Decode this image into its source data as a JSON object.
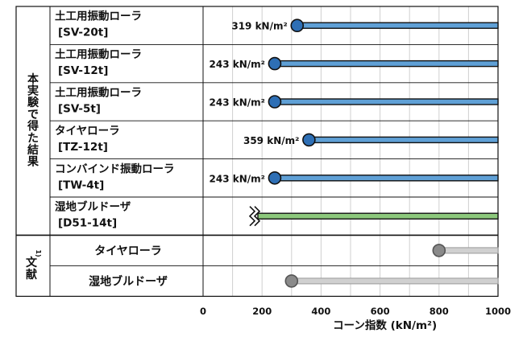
{
  "chart_data": {
    "type": "bar",
    "title": "",
    "xlabel": "コーン指数 (kN/m²)",
    "xlim": [
      0,
      1000
    ],
    "xticks": [
      "0",
      "200",
      "400",
      "600",
      "800",
      "1000"
    ],
    "grid": true,
    "groups": [
      {
        "label": "本実験で得た結果",
        "rows": [
          0,
          1,
          2,
          3,
          4,
          5
        ]
      },
      {
        "label": "文献",
        "superscript": "1)",
        "rows": [
          6,
          7
        ]
      }
    ],
    "rows": [
      {
        "name": "土工用振動ローラ",
        "spec": "[SV-20t]",
        "value": 319,
        "value_label": "319 kN/m²",
        "color": "#5fa0d6",
        "marker": true
      },
      {
        "name": "土工用振動ローラ",
        "spec": "[SV-12t]",
        "value": 243,
        "value_label": "243 kN/m²",
        "color": "#5fa0d6",
        "marker": true
      },
      {
        "name": "土工用振動ローラ",
        "spec": "[SV-5t]",
        "value": 243,
        "value_label": "243 kN/m²",
        "color": "#5fa0d6",
        "marker": true
      },
      {
        "name": "タイヤローラ",
        "spec": "[TZ-12t]",
        "value": 359,
        "value_label": "359 kN/m²",
        "color": "#5fa0d6",
        "marker": true
      },
      {
        "name": "コンバインド振動ローラ",
        "spec": "[TW-4t]",
        "value": 243,
        "value_label": "243 kN/m²",
        "color": "#5fa0d6",
        "marker": true
      },
      {
        "name": "湿地ブルドーザ",
        "spec": "[D51-14t]",
        "value": null,
        "value_label": "",
        "color": "#8cc87c",
        "marker": false,
        "axis_break": true
      },
      {
        "name": "タイヤローラ",
        "spec": "",
        "value": 800,
        "value_label": "",
        "color": "#d0d0d0",
        "marker": true
      },
      {
        "name": "湿地ブルドーザ",
        "spec": "",
        "value": 300,
        "value_label": "",
        "color": "#d0d0d0",
        "marker": true
      }
    ],
    "colors": {
      "bar_outline": "#111111",
      "marker_blue": "#2e6fb5",
      "marker_gray": "#8a8a8a",
      "grid": "#cfcfcf"
    }
  }
}
